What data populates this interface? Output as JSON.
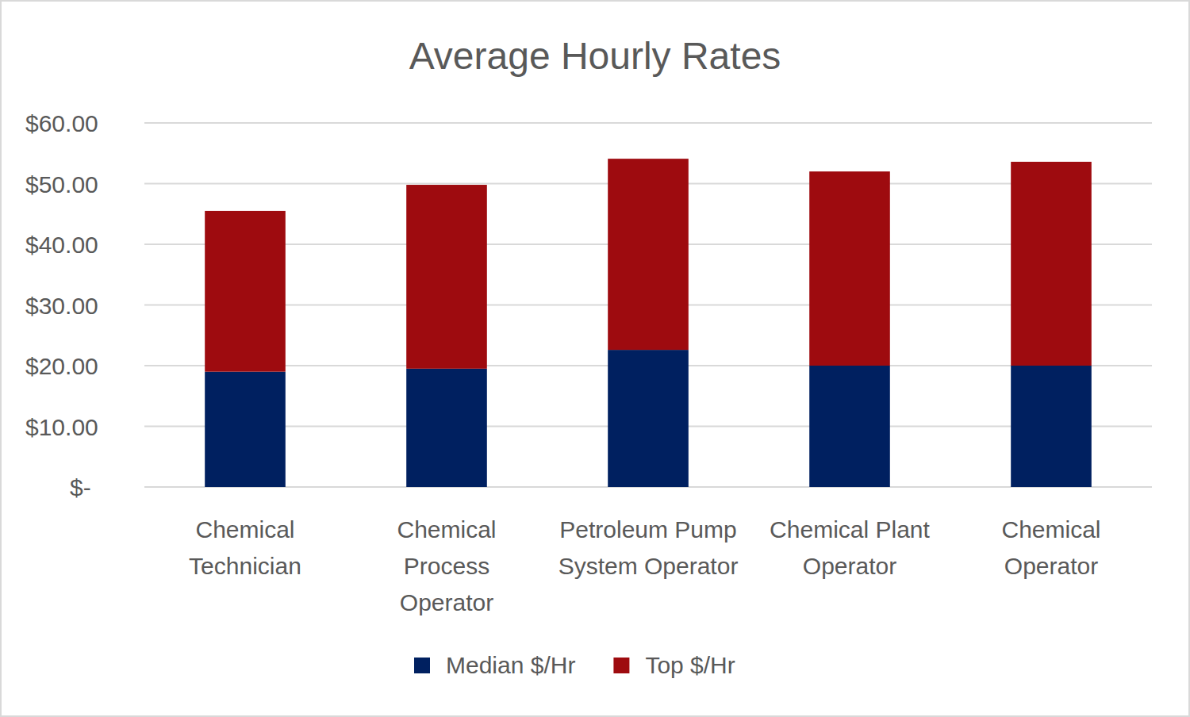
{
  "chart_data": {
    "type": "bar",
    "title": "Average Hourly Rates",
    "categories": [
      "Chemical Technician",
      "Chemical Process Operator",
      "Petroleum Pump System Operator",
      "Chemical Plant Operator",
      "Chemical Operator"
    ],
    "series": [
      {
        "name": "Median $/Hr",
        "color": "#002060",
        "values": [
          19,
          19.5,
          22.6,
          20,
          20
        ]
      },
      {
        "name": "Top $/Hr",
        "color": "#9e0b0f",
        "values": [
          26.5,
          30.3,
          31.5,
          32,
          33.6
        ]
      }
    ],
    "stacked": true,
    "ylim": [
      0,
      60
    ],
    "yticks": [
      {
        "value": 0,
        "label": "$-"
      },
      {
        "value": 10,
        "label": "$10.00"
      },
      {
        "value": 20,
        "label": "$20.00"
      },
      {
        "value": 30,
        "label": "$30.00"
      },
      {
        "value": 40,
        "label": "$40.00"
      },
      {
        "value": 50,
        "label": "$50.00"
      },
      {
        "value": 60,
        "label": "$60.00"
      }
    ],
    "grid": true,
    "legend": "bottom"
  }
}
